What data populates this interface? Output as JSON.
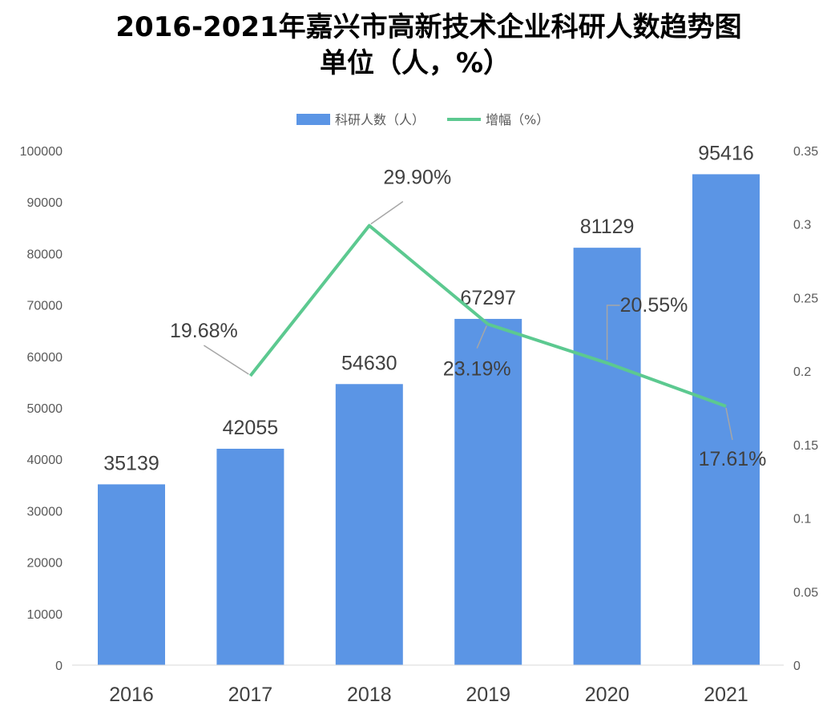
{
  "chart_data": {
    "type": "bar",
    "title": "2016-2021年嘉兴市高新技术企业科研人数趋势图",
    "subtitle": "单位（人，%）",
    "categories": [
      "2016",
      "2017",
      "2018",
      "2019",
      "2020",
      "2021"
    ],
    "series": [
      {
        "name": "科研人数（人）",
        "type": "bar",
        "axis": "left",
        "color": "#5b95e5",
        "values": [
          35139,
          42055,
          54630,
          67297,
          81129,
          95416
        ],
        "labels": [
          "35139",
          "42055",
          "54630",
          "67297",
          "81129",
          "95416"
        ]
      },
      {
        "name": "增幅（%）",
        "type": "line",
        "axis": "right",
        "color": "#5cc990",
        "values": [
          null,
          0.1968,
          0.299,
          0.2319,
          0.2055,
          0.1761
        ],
        "labels": [
          "",
          "19.68%",
          "29.90%",
          "23.19%",
          "20.55%",
          "17.61%"
        ]
      }
    ],
    "y_left": {
      "range": [
        0,
        100000
      ],
      "ticks": [
        "0",
        "10000",
        "20000",
        "30000",
        "40000",
        "50000",
        "60000",
        "70000",
        "80000",
        "90000",
        "100000"
      ]
    },
    "y_right": {
      "range": [
        0,
        0.35
      ],
      "ticks": [
        "0",
        "0.05",
        "0.1",
        "0.15",
        "0.2",
        "0.25",
        "0.3",
        "0.35"
      ]
    },
    "legend": "top-center",
    "grid": false
  }
}
